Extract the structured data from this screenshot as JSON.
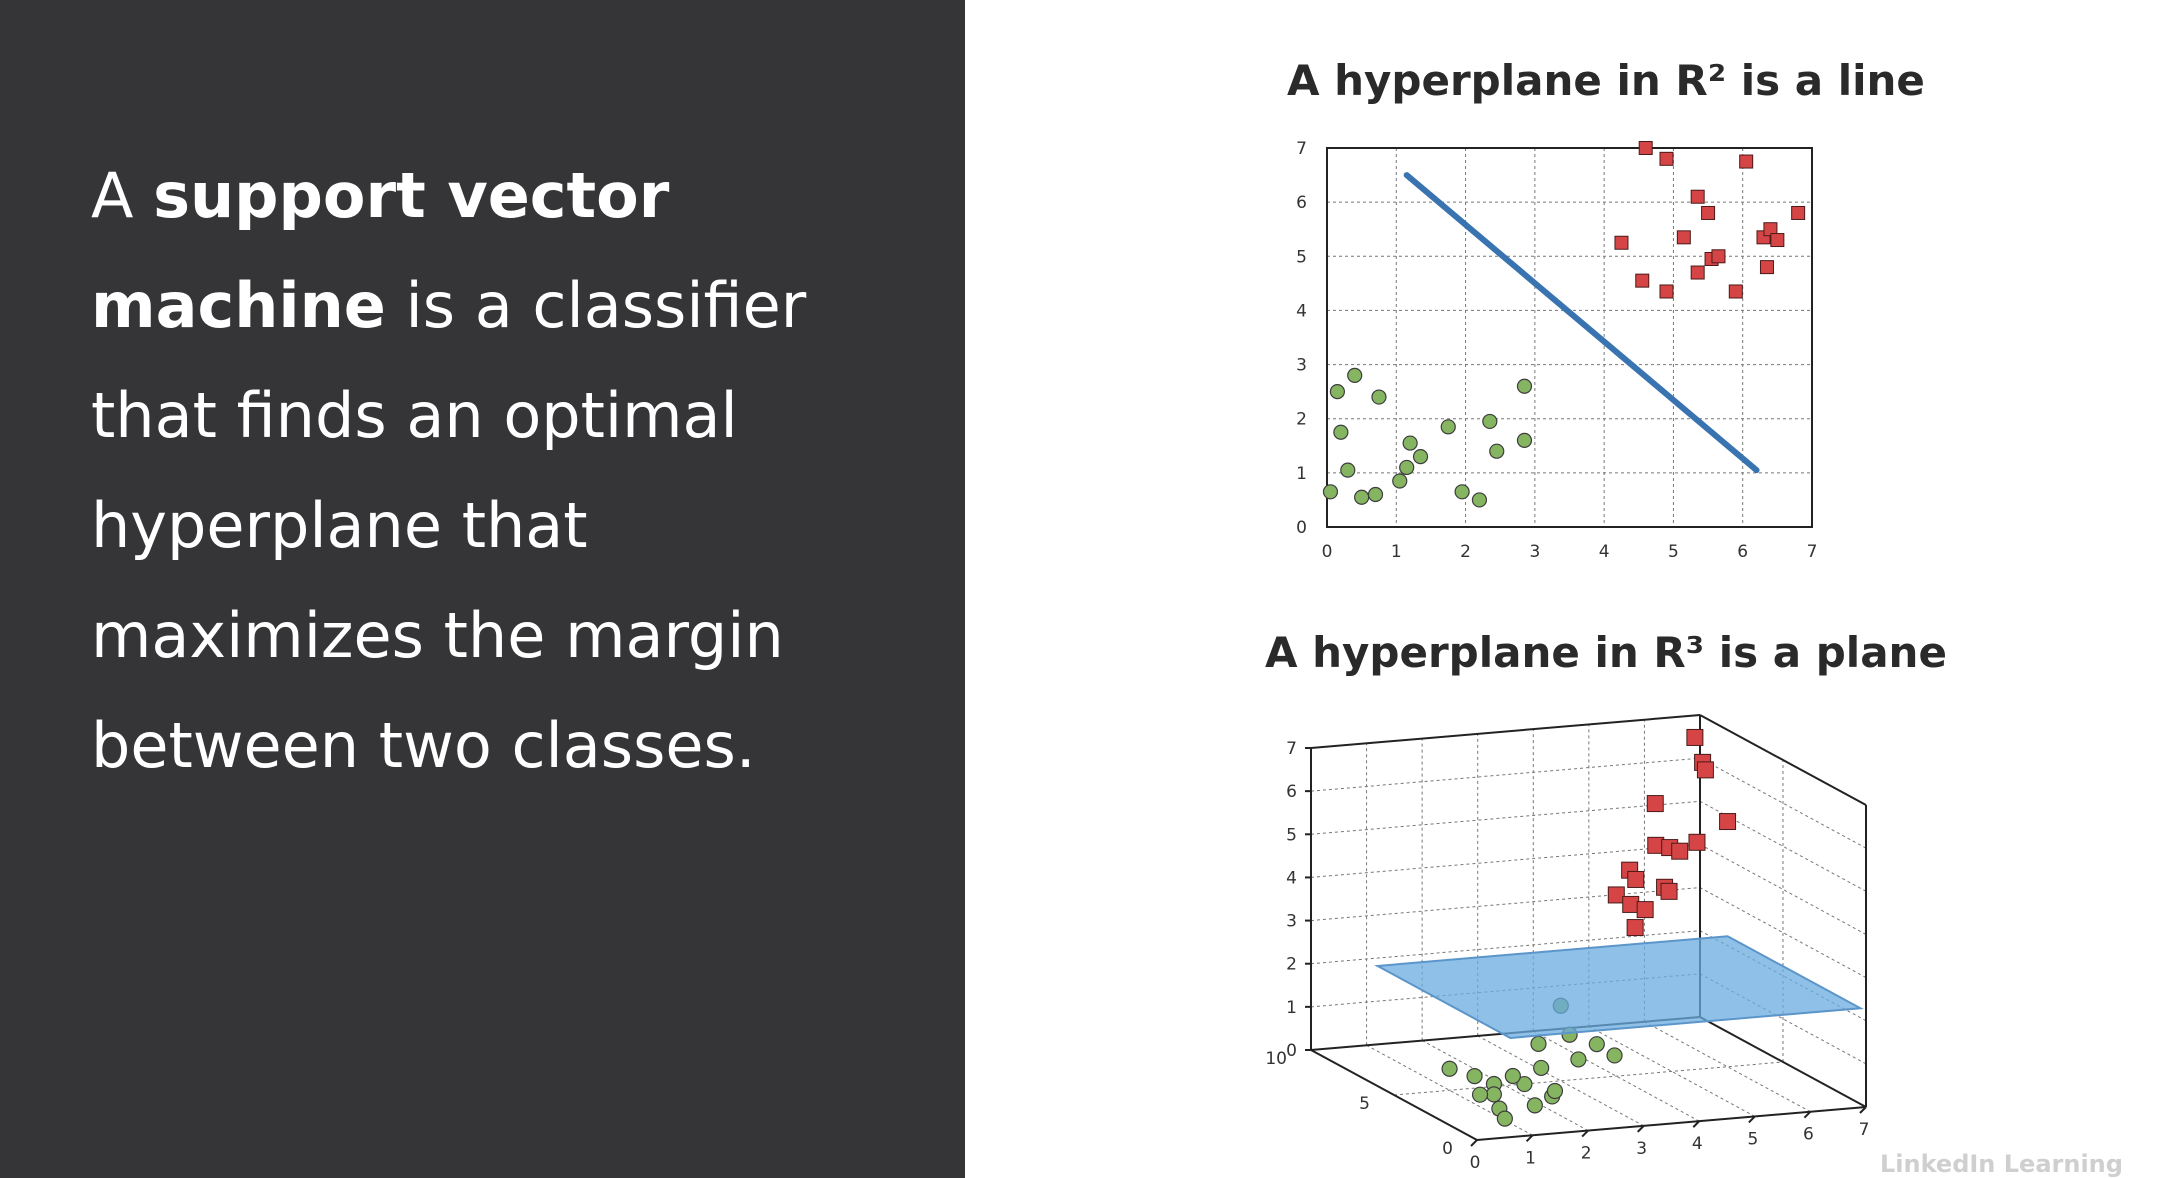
{
  "slide": {
    "text_parts": [
      {
        "text": "A ",
        "bold": false
      },
      {
        "text": "support vector machine",
        "bold": true
      },
      {
        "text": " is a classifier that finds an optimal hyperplane that maximizes the margin between two classes.",
        "bold": false
      }
    ]
  },
  "colors": {
    "left_panel": "#353537",
    "class_a_fill": "#86b562",
    "class_b_fill": "#d64545",
    "hyperplane_line": "#3a74b0",
    "hyperplane_plane": "#6aabe0"
  },
  "watermark": "LinkedIn Learning",
  "chart_data": [
    {
      "type": "scatter",
      "title": "A hyperplane in R² is a line",
      "xlim": [
        0,
        7
      ],
      "ylim": [
        0,
        7
      ],
      "xticks": [
        0,
        1,
        2,
        3,
        4,
        5,
        6,
        7
      ],
      "yticks": [
        0,
        1,
        2,
        3,
        4,
        5,
        6,
        7
      ],
      "grid": true,
      "series": [
        {
          "marker": "circle",
          "color": "#86b562",
          "points": [
            [
              0.05,
              0.65
            ],
            [
              0.15,
              2.5
            ],
            [
              0.2,
              1.75
            ],
            [
              0.3,
              1.05
            ],
            [
              0.4,
              2.8
            ],
            [
              0.5,
              0.55
            ],
            [
              0.7,
              0.6
            ],
            [
              0.75,
              2.4
            ],
            [
              1.05,
              0.85
            ],
            [
              1.15,
              1.1
            ],
            [
              1.2,
              1.55
            ],
            [
              1.35,
              1.3
            ],
            [
              1.75,
              1.85
            ],
            [
              1.95,
              0.65
            ],
            [
              2.2,
              0.5
            ],
            [
              2.35,
              1.95
            ],
            [
              2.45,
              1.4
            ],
            [
              2.85,
              2.6
            ],
            [
              2.85,
              1.6
            ]
          ]
        },
        {
          "marker": "square",
          "color": "#d64545",
          "points": [
            [
              4.25,
              5.25
            ],
            [
              4.55,
              4.55
            ],
            [
              4.6,
              7.0
            ],
            [
              4.9,
              6.8
            ],
            [
              4.9,
              4.35
            ],
            [
              5.15,
              5.35
            ],
            [
              5.35,
              6.1
            ],
            [
              5.35,
              4.7
            ],
            [
              5.5,
              5.8
            ],
            [
              5.55,
              4.95
            ],
            [
              5.65,
              5.0
            ],
            [
              5.9,
              4.35
            ],
            [
              6.05,
              6.75
            ],
            [
              6.3,
              5.35
            ],
            [
              6.35,
              4.8
            ],
            [
              6.4,
              5.5
            ],
            [
              6.5,
              5.3
            ],
            [
              6.8,
              5.8
            ]
          ]
        }
      ],
      "hyperplane_segment": [
        [
          1.15,
          6.5
        ],
        [
          6.2,
          1.05
        ]
      ]
    },
    {
      "type": "scatter",
      "title": "A hyperplane in R³ is a plane",
      "xlim": [
        0,
        7
      ],
      "ylim": [
        0,
        10
      ],
      "zlim": [
        0,
        7
      ],
      "xticks": [
        0,
        1,
        2,
        3,
        4,
        5,
        6,
        7
      ],
      "yticks": [
        0,
        5,
        10
      ],
      "zticks": [
        0,
        1,
        2,
        3,
        4,
        5,
        6,
        7
      ],
      "grid": true,
      "series": [
        {
          "marker": "circle",
          "color": "#86b562",
          "points": [
            [
              1.0,
              5.0,
              0.5
            ],
            [
              1.3,
              4.5,
              0.4
            ],
            [
              1.5,
              4.0,
              0.3
            ],
            [
              1.2,
              3.0,
              0.3
            ],
            [
              1.0,
              2.0,
              0.2
            ],
            [
              1.6,
              2.5,
              0.6
            ],
            [
              1.8,
              1.5,
              0.5
            ],
            [
              0.8,
              1.0,
              0.2
            ],
            [
              1.4,
              1.2,
              0.4
            ],
            [
              2.2,
              3.5,
              0.7
            ],
            [
              1.9,
              4.2,
              0.4
            ],
            [
              2.6,
              5.0,
              0.9
            ],
            [
              3.1,
              4.8,
              1.1
            ],
            [
              3.5,
              4.5,
              0.9
            ],
            [
              3.7,
              4.1,
              0.7
            ],
            [
              2.9,
              3.6,
              0.8
            ],
            [
              3.3,
              6.0,
              1.5
            ],
            [
              1.1,
              3.5,
              0.2
            ],
            [
              2.0,
              2.0,
              0.5
            ]
          ]
        },
        {
          "marker": "square",
          "color": "#d64545",
          "points": [
            [
              4.0,
              5.0,
              4.2
            ],
            [
              4.2,
              4.8,
              4.0
            ],
            [
              4.3,
              5.2,
              4.7
            ],
            [
              4.5,
              5.5,
              4.4
            ],
            [
              4.1,
              4.2,
              3.6
            ],
            [
              4.4,
              4.6,
              3.9
            ],
            [
              4.6,
              4.1,
              4.5
            ],
            [
              4.8,
              5.3,
              5.2
            ],
            [
              5.0,
              6.0,
              6.0
            ],
            [
              4.8,
              4.5,
              4.3
            ],
            [
              5.2,
              5.8,
              5.0
            ],
            [
              5.5,
              6.2,
              4.8
            ],
            [
              6.3,
              7.5,
              6.5
            ],
            [
              6.5,
              8.0,
              6.2
            ],
            [
              6.4,
              8.3,
              6.9
            ],
            [
              6.6,
              7.0,
              5.2
            ],
            [
              5.9,
              6.5,
              4.9
            ]
          ]
        }
      ],
      "hyperplane_plane": {
        "z": 2.3,
        "x_range": [
          0.6,
          6.9
        ],
        "y_range": [
          0.0,
          8.0
        ]
      }
    }
  ]
}
